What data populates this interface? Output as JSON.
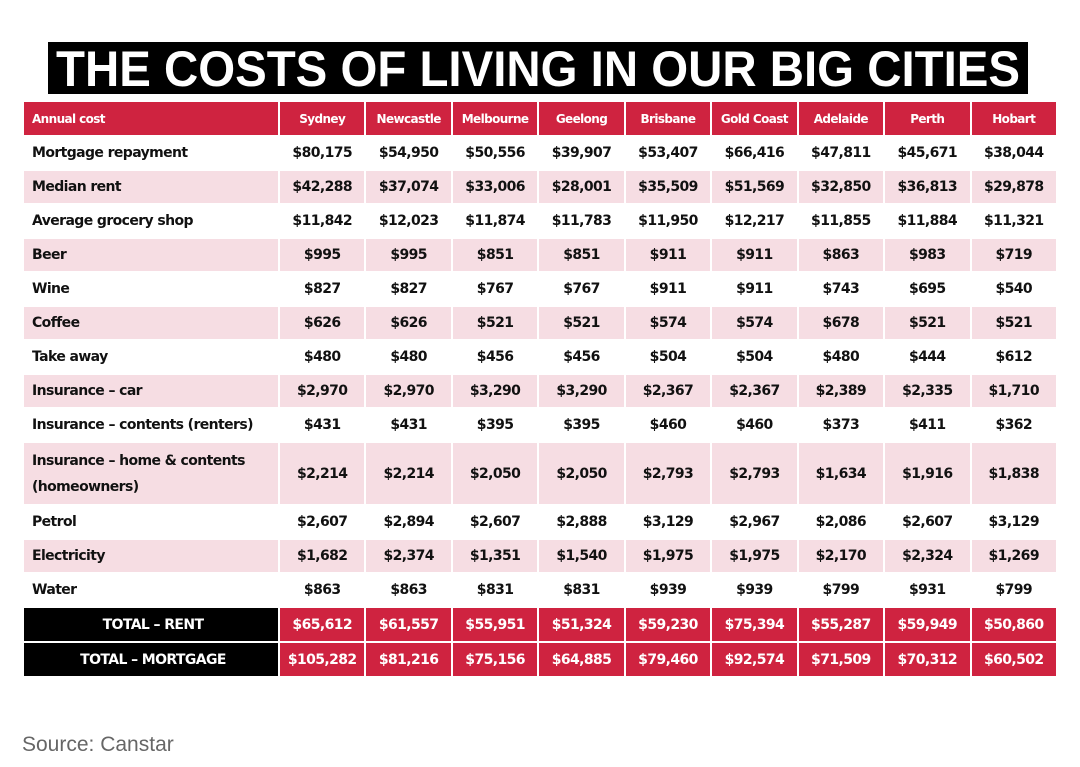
{
  "header": {
    "title": "THE COSTS OF LIVING IN OUR BIG CITIES"
  },
  "table": {
    "header": [
      "Annual cost",
      "Sydney",
      "Newcastle",
      "Melbourne",
      "Geelong",
      "Brisbane",
      "Gold Coast",
      "Adelaide",
      "Perth",
      "Hobart"
    ],
    "rows": [
      [
        "Mortgage repayment",
        "$80,175",
        "$54,950",
        "$50,556",
        "$39,907",
        "$53,407",
        "$66,416",
        "$47,811",
        "$45,671",
        "$38,044"
      ],
      [
        "Median rent",
        "$42,288",
        "$37,074",
        "$33,006",
        "$28,001",
        "$35,509",
        "$51,569",
        "$32,850",
        "$36,813",
        "$29,878"
      ],
      [
        "Average grocery shop",
        "$11,842",
        "$12,023",
        "$11,874",
        "$11,783",
        "$11,950",
        "$12,217",
        "$11,855",
        "$11,884",
        "$11,321"
      ],
      [
        "Beer",
        "$995",
        "$995",
        "$851",
        "$851",
        "$911",
        "$911",
        "$863",
        "$983",
        "$719"
      ],
      [
        "Wine",
        "$827",
        "$827",
        "$767",
        "$767",
        "$911",
        "$911",
        "$743",
        "$695",
        "$540"
      ],
      [
        "Coffee",
        "$626",
        "$626",
        "$521",
        "$521",
        "$574",
        "$574",
        "$678",
        "$521",
        "$521"
      ],
      [
        "Take away",
        "$480",
        "$480",
        "$456",
        "$456",
        "$504",
        "$504",
        "$480",
        "$444",
        "$612"
      ],
      [
        "Insurance – car",
        "$2,970",
        "$2,970",
        "$3,290",
        "$3,290",
        "$2,367",
        "$2,367",
        "$2,389",
        "$2,335",
        "$1,710"
      ],
      [
        "Insurance – contents (renters)",
        "$431",
        "$431",
        "$395",
        "$395",
        "$460",
        "$460",
        "$373",
        "$411",
        "$362"
      ],
      [
        "Insurance – home & contents (homeowners)",
        "$2,214",
        "$2,214",
        "$2,050",
        "$2,050",
        "$2,793",
        "$2,793",
        "$1,634",
        "$1,916",
        "$1,838"
      ],
      [
        "Petrol",
        "$2,607",
        "$2,894",
        "$2,607",
        "$2,888",
        "$3,129",
        "$2,967",
        "$2,086",
        "$2,607",
        "$3,129"
      ],
      [
        "Electricity",
        "$1,682",
        "$2,374",
        "$1,351",
        "$1,540",
        "$1,975",
        "$1,975",
        "$2,170",
        "$2,324",
        "$1,269"
      ],
      [
        "Water",
        "$863",
        "$863",
        "$831",
        "$831",
        "$939",
        "$939",
        "$799",
        "$931",
        "$799"
      ]
    ],
    "totals": [
      [
        "TOTAL – RENT",
        "$65,612",
        "$61,557",
        "$55,951",
        "$51,324",
        "$59,230",
        "$75,394",
        "$55,287",
        "$59,949",
        "$50,860"
      ],
      [
        "TOTAL – MORTGAGE",
        "$105,282",
        "$81,216",
        "$75,156",
        "$64,885",
        "$79,460",
        "$92,574",
        "$71,509",
        "$70,312",
        "$60,502"
      ]
    ]
  },
  "source": "Source: Canstar"
}
